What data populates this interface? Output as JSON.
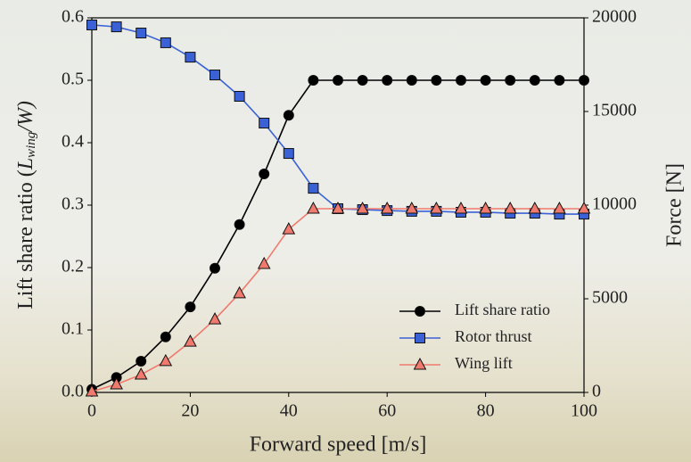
{
  "chart_data": {
    "type": "line",
    "xlabel": "Forward speed [m/s]",
    "ylabel": {
      "text": "Lift share ratio (",
      "symbol": "L",
      "subscript": "wing",
      "rest": "/W)"
    },
    "y2label": "Force [N]",
    "x": [
      0,
      5,
      10,
      15,
      20,
      25,
      30,
      35,
      40,
      45,
      50,
      55,
      60,
      65,
      70,
      75,
      80,
      85,
      90,
      95,
      100
    ],
    "xlim": [
      0,
      100
    ],
    "xticks": [
      0,
      20,
      40,
      60,
      80,
      100
    ],
    "ylim": [
      0,
      0.6
    ],
    "yticks": [
      {
        "value": 0,
        "label": "0.0"
      },
      0.1,
      0.2,
      0.3,
      0.4,
      0.5,
      0.6
    ],
    "y2lim": [
      0,
      20000
    ],
    "y2ticks": [
      0,
      5000,
      10000,
      15000,
      20000
    ],
    "legend": "lower right",
    "series": [
      {
        "name": "Lift share ratio",
        "color": "#000000",
        "marker": "circle",
        "axis": "y",
        "values": [
          0.005,
          0.024,
          0.05,
          0.089,
          0.137,
          0.199,
          0.269,
          0.35,
          0.444,
          0.5,
          0.5,
          0.5,
          0.5,
          0.5,
          0.5,
          0.5,
          0.5,
          0.5,
          0.5,
          0.5,
          0.5
        ]
      },
      {
        "name": "Rotor thrust",
        "color": "#3a62d6",
        "marker": "square",
        "axis": "y2",
        "values": [
          19620,
          19520,
          19190,
          18670,
          17900,
          16950,
          15810,
          14380,
          12760,
          10900,
          9810,
          9760,
          9710,
          9670,
          9670,
          9620,
          9620,
          9570,
          9570,
          9520,
          9520
        ]
      },
      {
        "name": "Wing lift",
        "color": "#f07a6e",
        "marker": "triangle",
        "axis": "y2",
        "values": [
          50,
          430,
          950,
          1670,
          2710,
          3900,
          5290,
          6860,
          8710,
          9810,
          9810,
          9810,
          9810,
          9810,
          9810,
          9810,
          9810,
          9810,
          9810,
          9810,
          9810
        ]
      }
    ]
  }
}
